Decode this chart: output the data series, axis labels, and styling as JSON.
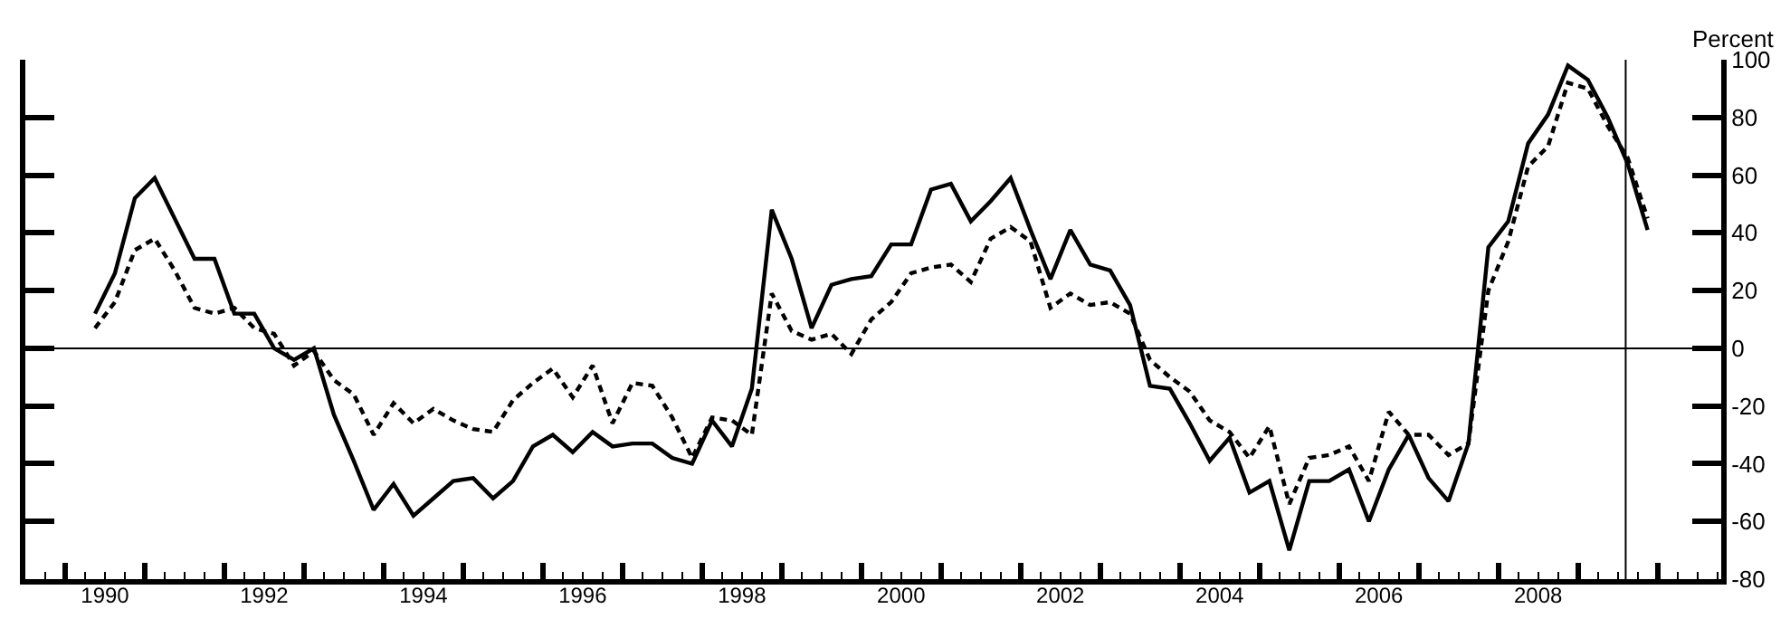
{
  "chart_data": {
    "type": "line",
    "ylabel": "Percent",
    "x": [
      1990.375,
      1990.625,
      1990.875,
      1991.125,
      1991.375,
      1991.625,
      1991.875,
      1992.125,
      1992.375,
      1992.625,
      1992.875,
      1993.125,
      1993.375,
      1993.625,
      1993.875,
      1994.125,
      1994.375,
      1994.625,
      1994.875,
      1995.125,
      1995.375,
      1995.625,
      1995.875,
      1996.125,
      1996.375,
      1996.625,
      1996.875,
      1997.125,
      1997.375,
      1997.625,
      1997.875,
      1998.125,
      1998.375,
      1998.625,
      1998.875,
      1999.125,
      1999.375,
      1999.625,
      1999.875,
      2000.125,
      2000.375,
      2000.625,
      2000.875,
      2001.125,
      2001.375,
      2001.625,
      2001.875,
      2002.125,
      2002.375,
      2002.625,
      2002.875,
      2003.125,
      2003.375,
      2003.625,
      2003.875,
      2004.125,
      2004.375,
      2004.625,
      2004.875,
      2005.125,
      2005.375,
      2005.625,
      2005.875,
      2006.125,
      2006.375,
      2006.625,
      2006.875,
      2007.125,
      2007.375,
      2007.625,
      2007.875,
      2008.125,
      2008.375,
      2008.625,
      2008.875,
      2009.125,
      2009.375,
      2009.625,
      2009.875
    ],
    "series": [
      {
        "color": "#000000",
        "line_style": "solid",
        "values": [
          12,
          26,
          52,
          59,
          45,
          31,
          31,
          12,
          12,
          0,
          -4,
          0,
          -23,
          -39,
          -56,
          -47,
          -58,
          -52,
          -46,
          -45,
          -52,
          -46,
          -34,
          -30,
          -36,
          -29,
          -34,
          -33,
          -33,
          -38,
          -40,
          -25,
          -34,
          -14,
          48,
          31,
          7,
          22,
          24,
          25,
          36,
          36,
          55,
          57,
          44,
          51,
          59,
          41,
          24,
          41,
          29,
          27,
          15,
          -13,
          -14,
          -26,
          -39,
          -31,
          -50,
          -46,
          -70,
          -46,
          -46,
          -42,
          -60,
          -42,
          -30,
          -45,
          -53,
          -33,
          35,
          44,
          71,
          81,
          98,
          93,
          80,
          64,
          41
        ]
      },
      {
        "color": "#000000",
        "line_style": "dashed",
        "values": [
          7,
          16,
          34,
          38,
          27,
          14,
          12,
          14,
          7,
          5,
          -6,
          -1,
          -11,
          -16,
          -30,
          -19,
          -26,
          -21,
          -25,
          -28,
          -29,
          -18,
          -12,
          -7,
          -17,
          -6,
          -26,
          -12,
          -13,
          -24,
          -38,
          -24,
          -25,
          -30,
          19,
          6,
          3,
          5,
          -2,
          10,
          16,
          26,
          28,
          29,
          23,
          38,
          42,
          37,
          14,
          19,
          15,
          16,
          12,
          -4,
          -10,
          -15,
          -25,
          -29,
          -38,
          -27,
          -54,
          -38,
          -37,
          -34,
          -46,
          -22,
          -30,
          -30,
          -37,
          -33,
          20,
          37,
          63,
          70,
          92,
          90,
          77,
          66,
          45
        ]
      }
    ],
    "xlim": [
      1989.5,
      2010.8
    ],
    "xticks": [
      {
        "value": 1990,
        "label": null
      },
      {
        "value": 1990.5,
        "label": "1990"
      },
      {
        "value": 1991,
        "label": null
      },
      {
        "value": 1992,
        "label": null
      },
      {
        "value": 1992.5,
        "label": "1992"
      },
      {
        "value": 1993,
        "label": null
      },
      {
        "value": 1994,
        "label": null
      },
      {
        "value": 1994.5,
        "label": "1994"
      },
      {
        "value": 1995,
        "label": null
      },
      {
        "value": 1996,
        "label": null
      },
      {
        "value": 1996.5,
        "label": "1996"
      },
      {
        "value": 1997,
        "label": null
      },
      {
        "value": 1998,
        "label": null
      },
      {
        "value": 1998.5,
        "label": "1998"
      },
      {
        "value": 1999,
        "label": null
      },
      {
        "value": 2000,
        "label": null
      },
      {
        "value": 2000.5,
        "label": "2000"
      },
      {
        "value": 2001,
        "label": null
      },
      {
        "value": 2002,
        "label": null
      },
      {
        "value": 2002.5,
        "label": "2002"
      },
      {
        "value": 2003,
        "label": null
      },
      {
        "value": 2004,
        "label": null
      },
      {
        "value": 2004.5,
        "label": "2004"
      },
      {
        "value": 2005,
        "label": null
      },
      {
        "value": 2006,
        "label": null
      },
      {
        "value": 2006.5,
        "label": "2006"
      },
      {
        "value": 2007,
        "label": null
      },
      {
        "value": 2008,
        "label": null
      },
      {
        "value": 2008.5,
        "label": "2008"
      },
      {
        "value": 2009,
        "label": null
      },
      {
        "value": 2010,
        "label": null
      }
    ],
    "ylim": [
      -80,
      100
    ],
    "yticks": [
      -80,
      -60,
      -40,
      -20,
      0,
      20,
      40,
      60,
      80,
      100
    ],
    "ref_lines": [
      {
        "axis": "y",
        "value": 0,
        "color": "#000000"
      },
      {
        "axis": "x",
        "value": 2009.6,
        "color": "#000000"
      }
    ],
    "marker": "none"
  }
}
